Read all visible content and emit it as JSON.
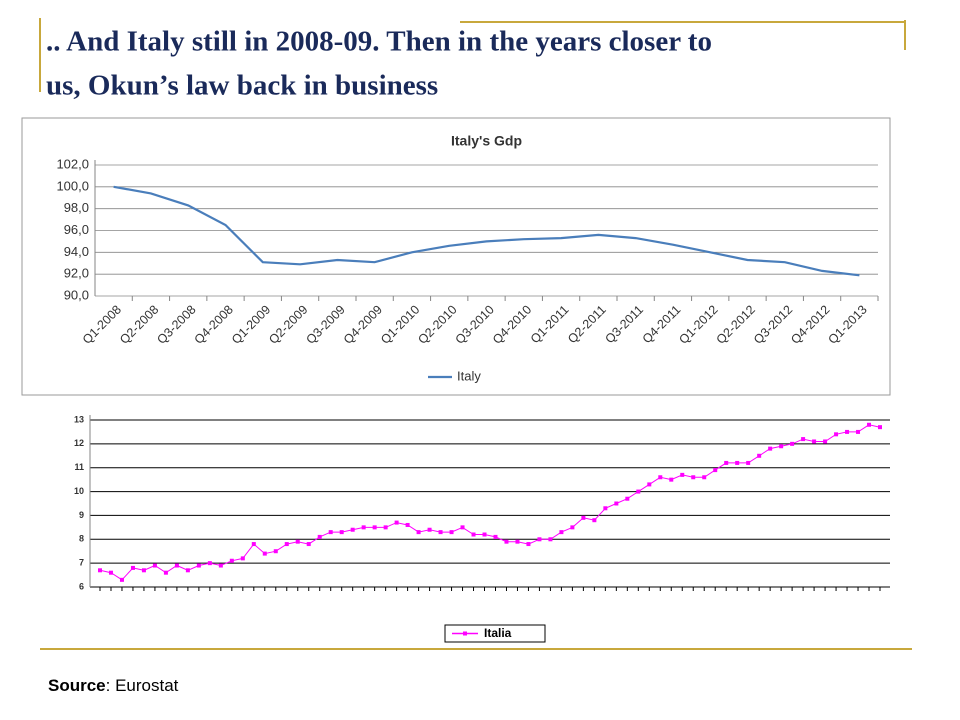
{
  "header": {
    "title_lines": [
      ".. And Italy still in 2008-09. Then in the years closer to",
      "us, Okun’s law back in business"
    ]
  },
  "chart_data": [
    {
      "type": "line",
      "title": "Italy's Gdp",
      "categories": [
        "Q1-2008",
        "Q2-2008",
        "Q3-2008",
        "Q4-2008",
        "Q1-2009",
        "Q2-2009",
        "Q3-2009",
        "Q4-2009",
        "Q1-2010",
        "Q2-2010",
        "Q3-2010",
        "Q4-2010",
        "Q1-2011",
        "Q2-2011",
        "Q3-2011",
        "Q4-2011",
        "Q1-2012",
        "Q2-2012",
        "Q3-2012",
        "Q4-2012",
        "Q1-2013"
      ],
      "series": [
        {
          "name": "Italy",
          "color": "#4a7ebb",
          "values": [
            100.0,
            99.4,
            98.3,
            96.5,
            93.1,
            92.9,
            93.3,
            93.1,
            94.0,
            94.6,
            95.0,
            95.2,
            95.3,
            95.6,
            95.3,
            94.7,
            94.0,
            93.3,
            93.1,
            92.3,
            91.9
          ]
        }
      ],
      "ylim": [
        90,
        102
      ],
      "yticks": [
        {
          "value": 90,
          "label": "90,0"
        },
        {
          "value": 92,
          "label": "92,0"
        },
        {
          "value": 94,
          "label": "94,0"
        },
        {
          "value": 96,
          "label": "96,0"
        },
        {
          "value": 98,
          "label": "98,0"
        },
        {
          "value": 100,
          "label": "100,0"
        },
        {
          "value": 102,
          "label": "102,0"
        }
      ],
      "grid": true,
      "legend": "bottom"
    },
    {
      "type": "line",
      "series": [
        {
          "name": "Italia",
          "color": "#ff00ff",
          "values": [
            6.7,
            6.6,
            6.3,
            6.8,
            6.7,
            6.9,
            6.6,
            6.9,
            6.7,
            6.9,
            7.0,
            6.9,
            7.1,
            7.2,
            7.8,
            7.4,
            7.5,
            7.8,
            7.9,
            7.8,
            8.1,
            8.3,
            8.3,
            8.4,
            8.5,
            8.5,
            8.5,
            8.7,
            8.6,
            8.3,
            8.4,
            8.3,
            8.3,
            8.5,
            8.2,
            8.2,
            8.1,
            7.9,
            7.9,
            7.8,
            8.0,
            8.0,
            8.3,
            8.5,
            8.9,
            8.8,
            9.3,
            9.5,
            9.7,
            10.0,
            10.3,
            10.6,
            10.5,
            10.7,
            10.6,
            10.6,
            10.9,
            11.2,
            11.2,
            11.2,
            11.5,
            11.8,
            11.9,
            12.0,
            12.2,
            12.1,
            12.1,
            12.4,
            12.5,
            12.5,
            12.8,
            12.7
          ]
        }
      ],
      "ylim": [
        6,
        13
      ],
      "yticks": [
        6,
        7,
        8,
        9,
        10,
        11,
        12,
        13
      ],
      "grid": true,
      "legend": "bottom"
    }
  ],
  "source": {
    "label": "Source",
    "text": ": Eurostat"
  }
}
